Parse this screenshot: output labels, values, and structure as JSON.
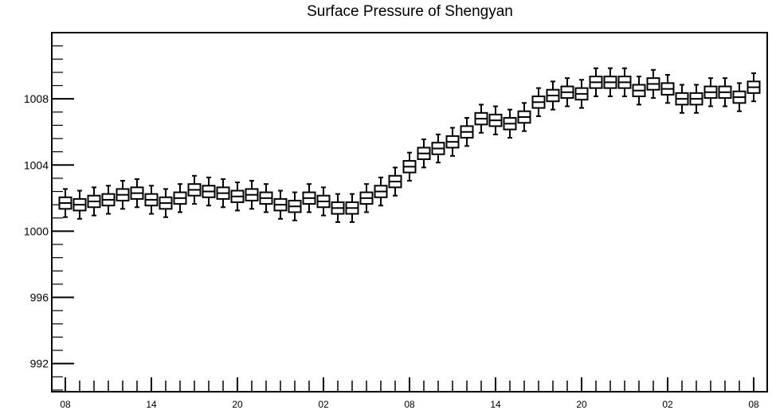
{
  "chart_data": {
    "type": "boxplot",
    "title": "Surface Pressure of Shengyan",
    "xlabel": "",
    "ylabel": "",
    "ylim": [
      990.3,
      1012.0
    ],
    "y_ticks": [
      992,
      996,
      1000,
      1004,
      1008
    ],
    "y_minor_step": 0.8,
    "x_tick_labels": [
      "08",
      "14",
      "20",
      "02",
      "08",
      "14",
      "20",
      "02",
      "08"
    ],
    "x_tick_every": 6,
    "grid": false,
    "legend": "none",
    "box_color": "#000000",
    "series": [
      {
        "medians": [
          1001.7,
          1001.6,
          1001.8,
          1001.9,
          1002.2,
          1002.3,
          1001.9,
          1001.7,
          1002.0,
          1002.5,
          1002.4,
          1002.3,
          1002.1,
          1002.2,
          1002.0,
          1001.6,
          1001.5,
          1002.0,
          1001.8,
          1001.4,
          1001.4,
          1002.0,
          1002.4,
          1003.0,
          1003.9,
          1004.7,
          1005.0,
          1005.4,
          1006.0,
          1006.8,
          1006.7,
          1006.5,
          1006.9,
          1007.8,
          1008.2,
          1008.4,
          1008.3,
          1009.0,
          1009.0,
          1009.0,
          1008.5,
          1008.9,
          1008.6,
          1008.0,
          1008.0,
          1008.4,
          1008.4,
          1008.1,
          1008.7
        ]
      }
    ]
  }
}
